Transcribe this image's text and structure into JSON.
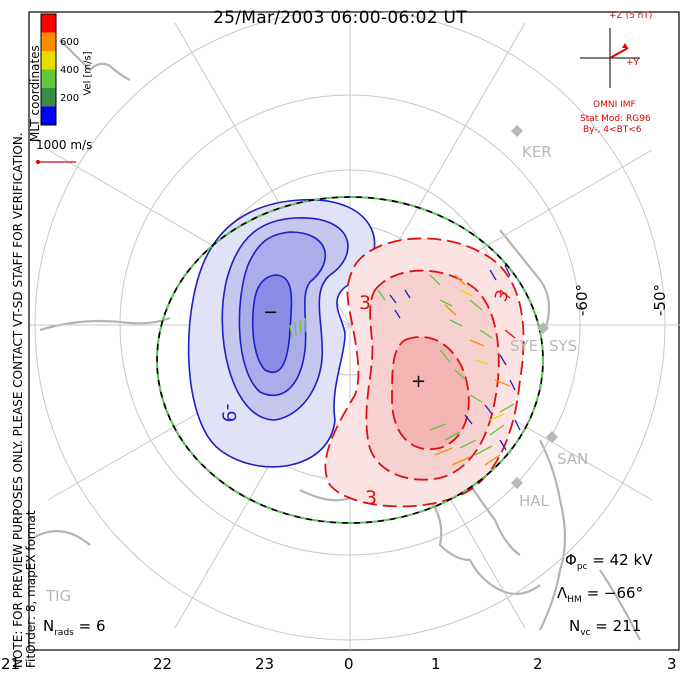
{
  "title": "25/Mar/2003 06:00-06:02 UT",
  "mlt_labels": [
    "21",
    "22",
    "23",
    "0",
    "1",
    "2",
    "3"
  ],
  "latitude_labels": [
    "-60°",
    "-50°"
  ],
  "coordinates_label": "MLT coordinates",
  "note": "NOTE: FOR PREVIEW PURPOSES ONLY. PLEASE CONTACT VT-SD STAFF FOR VERIFICATION.",
  "fit_order": "FitOrder: 8, mapEX format",
  "velocity_scale": {
    "label": "Vel [m/s]",
    "ticks": [
      "600",
      "400",
      "200"
    ],
    "colors": [
      "#0000ff",
      "#3c8c46",
      "#64c83c",
      "#e6dc00",
      "#ff8c00",
      "#ff0000"
    ],
    "reference_vector": "1000 m/s"
  },
  "imf": {
    "z_label": "+Z (5 nT)",
    "y_label": "+Y",
    "source": "OMNI IMF",
    "model_line1": "Stat Mod: RG96",
    "model_line2": "By-, 4<BT<6"
  },
  "stations": [
    "KER",
    "SYE",
    "SYS",
    "SAN",
    "HAL",
    "TIG"
  ],
  "contour_labels": {
    "negative": "-9",
    "positive_1": "3",
    "positive_2": "3",
    "positive_3": "3",
    "min_marker": "−",
    "max_marker": "+"
  },
  "stats": {
    "phi_pc": "= 42 kV",
    "lambda_hm": "= −66°",
    "n_vc": "= 211",
    "n_rads": "= 6"
  },
  "colors": {
    "negative_cell": "#2a2ad0",
    "positive_cell": "#e02020",
    "grid": "#c8c8c8",
    "coast": "#b4b4b4",
    "hm_boundary": "#5acd5a"
  }
}
